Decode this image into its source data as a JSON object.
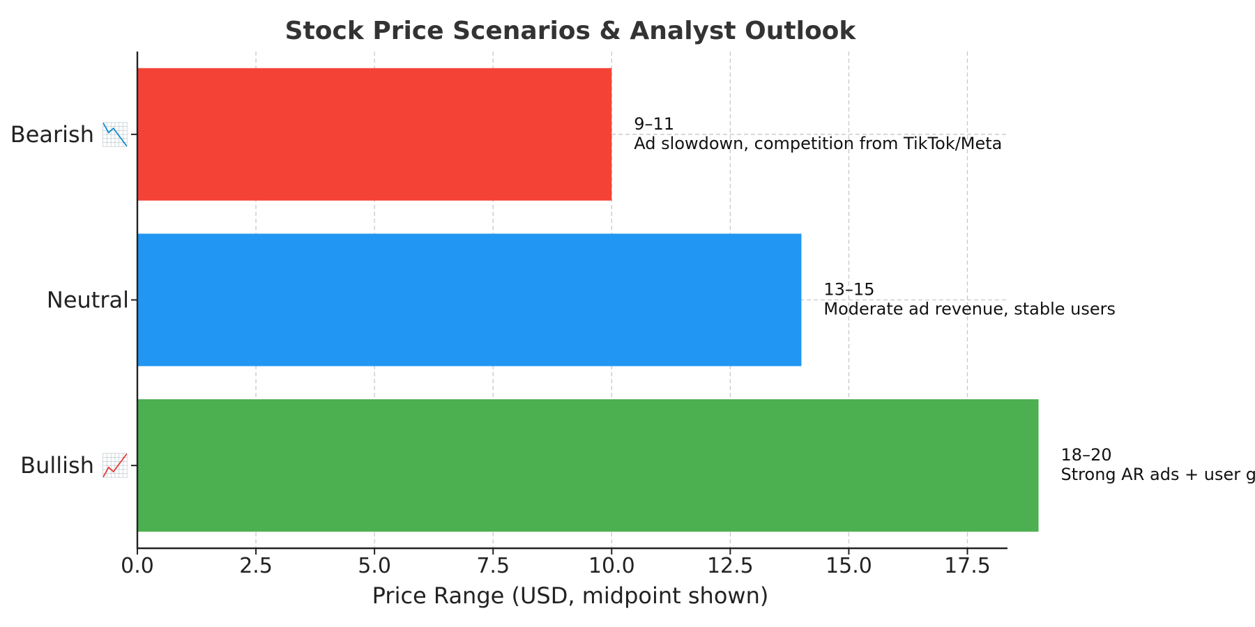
{
  "chart_data": {
    "type": "bar",
    "orientation": "horizontal",
    "title": "Stock Price Scenarios & Analyst Outlook",
    "xlabel": "Price Range (USD, midpoint shown)",
    "ylabel": "",
    "xlim": [
      0,
      20
    ],
    "xticks": [
      "0.0",
      "2.5",
      "5.0",
      "7.5",
      "10.0",
      "12.5",
      "15.0",
      "17.5"
    ],
    "xtick_values": [
      0,
      2.5,
      5,
      7.5,
      10,
      12.5,
      15,
      17.5
    ],
    "grid": true,
    "categories": [
      "Bearish 📉",
      "Neutral",
      "Bullish 📈"
    ],
    "values": [
      10,
      14,
      19
    ],
    "colors": [
      "#f44336",
      "#2196f3",
      "#4caf50"
    ],
    "annotations": [
      {
        "range": "9–11",
        "note": "Ad slowdown, competition from TikTok/Meta"
      },
      {
        "range": "13–15",
        "note": "Moderate ad revenue, stable users"
      },
      {
        "range": "18–20",
        "note": "Strong AR ads + user growth"
      }
    ]
  }
}
